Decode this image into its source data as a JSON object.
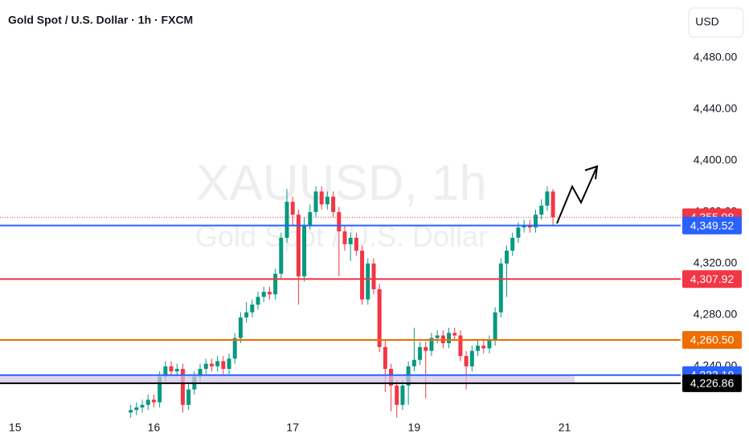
{
  "chart_data": {
    "type": "candlestick",
    "title": "Gold Spot / U.S. Dollar · 1h · FXCM",
    "currency": "USD",
    "watermark": "XAUUSD, 1h",
    "watermark_subtitle": "Gold Spot / U.S. Dollar",
    "up_color": "#089981",
    "down_color": "#f23645",
    "open": [
      4204,
      4206,
      4208,
      4210,
      4214,
      4212,
      4232,
      4240,
      4236,
      4238,
      4210,
      4222,
      4232,
      4238,
      4242,
      4240,
      4244,
      4238,
      4246,
      4262,
      4278,
      4282,
      4288,
      4294,
      4298,
      4296,
      4312,
      4340,
      4368,
      4358,
      4310,
      4350,
      4360,
      4376,
      4366,
      4372,
      4360,
      4345,
      4335,
      4340,
      4330,
      4292,
      4320,
      4300,
      4255,
      4238,
      4225,
      4210,
      4225,
      4240,
      4245,
      4255,
      4252,
      4262,
      4264,
      4258,
      4266,
      4264,
      4248,
      4240,
      4252,
      4256,
      4254,
      4260,
      4282,
      4320,
      4330,
      4340,
      4348,
      4350,
      4348,
      4358,
      4365,
      4376
    ],
    "high": [
      4210,
      4212,
      4214,
      4218,
      4218,
      4236,
      4244,
      4244,
      4242,
      4242,
      4226,
      4236,
      4242,
      4246,
      4246,
      4248,
      4248,
      4250,
      4266,
      4282,
      4290,
      4292,
      4298,
      4302,
      4302,
      4316,
      4344,
      4378,
      4372,
      4362,
      4356,
      4366,
      4380,
      4380,
      4376,
      4376,
      4364,
      4350,
      4344,
      4344,
      4334,
      4324,
      4324,
      4304,
      4260,
      4242,
      4229,
      4229,
      4244,
      4270,
      4259,
      4259,
      4266,
      4268,
      4268,
      4270,
      4270,
      4268,
      4252,
      4256,
      4260,
      4260,
      4264,
      4286,
      4324,
      4334,
      4344,
      4352,
      4354,
      4354,
      4362,
      4370,
      4380,
      4378
    ],
    "low": [
      4200,
      4202,
      4204,
      4206,
      4208,
      4208,
      4228,
      4232,
      4232,
      4204,
      4206,
      4218,
      4228,
      4234,
      4236,
      4236,
      4234,
      4234,
      4242,
      4258,
      4274,
      4278,
      4284,
      4290,
      4292,
      4292,
      4308,
      4336,
      4350,
      4288,
      4306,
      4346,
      4356,
      4362,
      4362,
      4356,
      4310,
      4330,
      4322,
      4326,
      4288,
      4288,
      4296,
      4251,
      4220,
      4205,
      4200,
      4206,
      4210,
      4236,
      4241,
      4215,
      4248,
      4258,
      4254,
      4254,
      4260,
      4244,
      4222,
      4236,
      4248,
      4250,
      4250,
      4256,
      4278,
      4294,
      4326,
      4336,
      4344,
      4344,
      4344,
      4354,
      4361,
      4350
    ],
    "close": [
      4206,
      4208,
      4210,
      4214,
      4212,
      4232,
      4240,
      4236,
      4238,
      4210,
      4222,
      4232,
      4238,
      4242,
      4240,
      4244,
      4238,
      4246,
      4262,
      4278,
      4282,
      4288,
      4294,
      4298,
      4296,
      4312,
      4340,
      4368,
      4358,
      4310,
      4350,
      4360,
      4376,
      4366,
      4372,
      4360,
      4345,
      4335,
      4340,
      4330,
      4292,
      4320,
      4300,
      4255,
      4238,
      4225,
      4210,
      4225,
      4240,
      4245,
      4255,
      4252,
      4262,
      4264,
      4258,
      4266,
      4264,
      4248,
      4240,
      4252,
      4256,
      4254,
      4260,
      4282,
      4320,
      4330,
      4340,
      4348,
      4350,
      4348,
      4358,
      4365,
      4376,
      4356
    ],
    "xlim": [
      -22.6,
      94.8
    ],
    "xticks": [
      {
        "value": -20,
        "label": "15"
      },
      {
        "value": 4,
        "label": "16"
      },
      {
        "value": 28,
        "label": "17"
      },
      {
        "value": 49,
        "label": "19"
      },
      {
        "value": 75,
        "label": "21"
      }
    ],
    "ylim": [
      4203,
      4525
    ],
    "yticks": [
      {
        "value": 4480,
        "label": "4,480.00"
      },
      {
        "value": 4440,
        "label": "4,440.00"
      },
      {
        "value": 4400,
        "label": "4,400.00"
      },
      {
        "value": 4360,
        "label": "4,360.00"
      },
      {
        "value": 4320,
        "label": "4,320.00"
      },
      {
        "value": 4280,
        "label": "4,280.00"
      },
      {
        "value": 4240,
        "label": "4,240.00"
      }
    ],
    "zone": [
      4226.86,
      4233.18
    ],
    "price_lines": [
      {
        "value": 4355.98,
        "label": "4,355.98",
        "color": "#f23645",
        "dotted": true
      },
      {
        "value": 4349.52,
        "label": "4,349.52",
        "color": "#2962ff"
      },
      {
        "value": 4307.92,
        "label": "4,307.92",
        "color": "#f23645"
      },
      {
        "value": 4260.5,
        "label": "4,260.50",
        "color": "#ef6c00"
      },
      {
        "value": 4233.18,
        "label": "4,233.18",
        "color": "#2962ff"
      },
      {
        "value": 4226.86,
        "label": "4,226.86",
        "color": "#000000"
      }
    ]
  }
}
